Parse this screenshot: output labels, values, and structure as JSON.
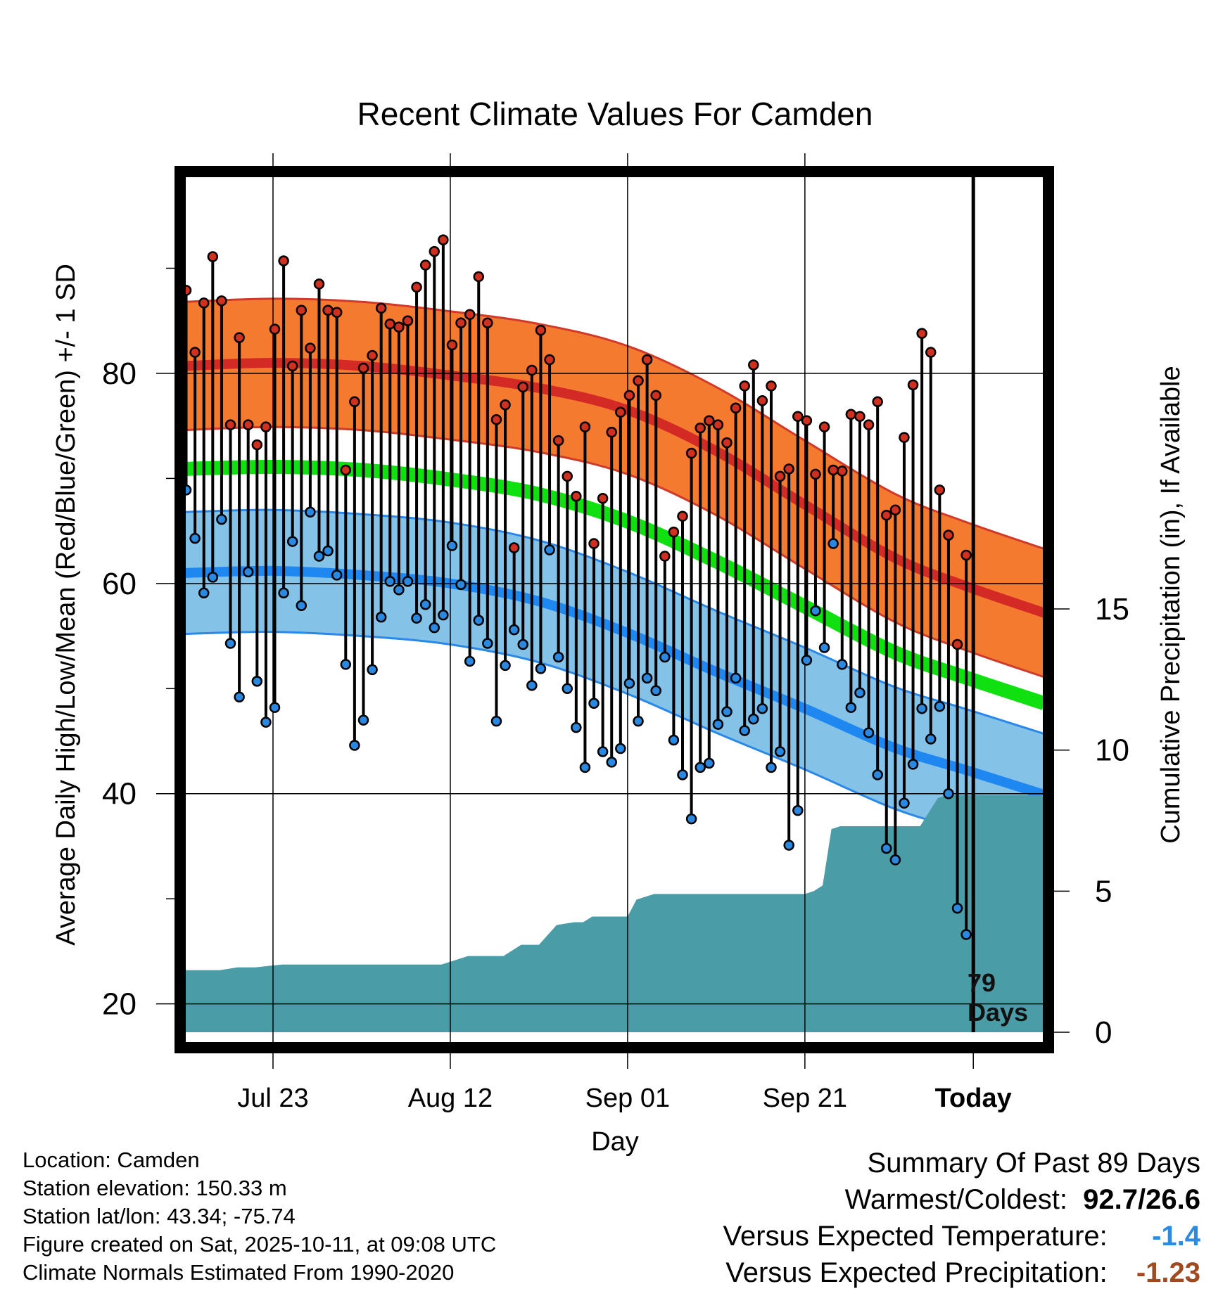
{
  "chart_data": {
    "type": "line",
    "title": "Recent Climate Values For Camden",
    "xlabel": "Day",
    "ylabel": "Average Daily High/Low/Mean (Red/Blue/Green) +/- 1 SD",
    "ylabel_right": "Cumulative Precipitation (in), If Available",
    "ylim": [
      17.3,
      99.2
    ],
    "y_ticks": [
      20,
      40,
      60,
      80
    ],
    "y2lim": [
      0,
      30.5
    ],
    "y2_ticks": [
      0,
      5,
      10,
      15
    ],
    "x_range": [
      -88,
      9
    ],
    "x_ticks": [
      {
        "day": -78,
        "label": "Jul 23"
      },
      {
        "day": -58,
        "label": "Aug 12"
      },
      {
        "day": -38,
        "label": "Sep 01"
      },
      {
        "day": -18,
        "label": "Sep 21"
      },
      {
        "day": 1,
        "label": "Today"
      }
    ],
    "today_day": 1,
    "today_annotation": "79 Days",
    "normal_high": {
      "day": [
        -88,
        -78,
        -68,
        -58,
        -48,
        -38,
        -28,
        -18,
        -8,
        0,
        9
      ],
      "mean": [
        80.7,
        81.0,
        80.7,
        79.8,
        78.6,
        76.5,
        72.6,
        67.5,
        62.5,
        59.8,
        57.2
      ],
      "sd": 6.1
    },
    "normal_low": {
      "day": [
        -88,
        -78,
        -68,
        -58,
        -48,
        -38,
        -28,
        -18,
        -8,
        0,
        9
      ],
      "mean": [
        61.0,
        61.2,
        60.8,
        60.0,
        58.3,
        55.3,
        51.6,
        48.1,
        44.4,
        42.3,
        39.9
      ],
      "sd": 5.8
    },
    "normal_mean": {
      "day": [
        -88,
        -78,
        -68,
        -58,
        -48,
        -38,
        -28,
        -18,
        -8,
        0,
        9
      ],
      "values": [
        70.9,
        71.1,
        70.8,
        69.9,
        68.5,
        65.9,
        62.1,
        57.8,
        53.5,
        51.1,
        48.6
      ]
    },
    "daily_high": [
      87.9,
      82.0,
      86.7,
      91.1,
      86.9,
      75.1,
      83.4,
      75.1,
      73.2,
      74.9,
      84.2,
      90.7,
      80.7,
      86.0,
      82.4,
      88.5,
      86.0,
      85.8,
      70.8,
      77.3,
      80.5,
      81.7,
      86.2,
      84.7,
      84.4,
      85.0,
      88.2,
      90.3,
      91.6,
      92.7,
      82.7,
      84.8,
      85.6,
      89.2,
      84.8,
      75.6,
      77.0,
      63.4,
      78.7,
      80.3,
      84.1,
      81.3,
      73.6,
      70.2,
      68.3,
      74.9,
      63.8,
      68.1,
      74.4,
      76.3,
      77.9,
      79.3,
      81.3,
      77.9,
      62.6,
      64.9,
      66.4,
      72.4,
      74.8,
      75.5,
      75.1,
      73.4,
      76.7,
      78.8,
      80.8,
      77.4,
      78.8,
      70.2,
      70.9,
      75.9,
      75.5,
      70.4,
      74.9,
      70.8,
      70.7,
      76.1,
      75.9,
      75.1,
      77.3,
      66.5,
      67.0,
      73.9,
      78.9,
      83.8,
      82.0,
      68.9,
      64.6,
      54.2,
      62.7
    ],
    "daily_low": [
      68.9,
      64.3,
      59.1,
      60.6,
      66.1,
      54.3,
      49.2,
      61.1,
      50.7,
      46.8,
      48.2,
      59.1,
      64.0,
      57.9,
      66.8,
      62.6,
      63.1,
      60.8,
      52.3,
      44.6,
      47.0,
      51.8,
      56.8,
      60.2,
      59.4,
      60.2,
      56.7,
      58.0,
      55.8,
      57.0,
      63.6,
      59.9,
      52.6,
      56.5,
      54.3,
      46.9,
      52.2,
      55.6,
      54.2,
      50.3,
      51.9,
      63.2,
      53.0,
      50.0,
      46.3,
      42.5,
      48.6,
      44.0,
      43.0,
      44.3,
      50.5,
      46.9,
      51.0,
      49.8,
      53.0,
      45.1,
      41.8,
      37.6,
      42.5,
      42.9,
      46.6,
      47.8,
      51.0,
      46.0,
      47.1,
      48.1,
      42.5,
      44.0,
      35.1,
      38.4,
      52.7,
      57.4,
      53.9,
      63.8,
      52.3,
      48.2,
      49.6,
      45.8,
      41.8,
      34.8,
      33.7,
      39.1,
      42.8,
      48.1,
      45.2,
      48.3,
      40.0,
      29.1,
      26.6
    ],
    "cum_precip": {
      "day": [
        -88,
        -84,
        -82,
        -80,
        -77,
        -76,
        -71,
        -59,
        -58,
        -56,
        -52,
        -50,
        -48,
        -46,
        -44,
        -43,
        -42,
        -41,
        -38,
        -37,
        -35,
        -33,
        -31,
        -18,
        -17,
        -16,
        -15,
        -14,
        -13,
        -12,
        -11,
        -10,
        -9,
        -8,
        -7,
        -6,
        -5,
        -3,
        -2,
        -1,
        0,
        9
      ],
      "values": [
        2.2,
        2.2,
        2.3,
        2.3,
        2.4,
        2.4,
        2.4,
        2.4,
        2.5,
        2.7,
        2.7,
        3.1,
        3.1,
        3.8,
        3.9,
        3.9,
        4.1,
        4.1,
        4.1,
        4.7,
        4.9,
        4.9,
        4.9,
        4.9,
        5.0,
        5.2,
        7.2,
        7.3,
        7.3,
        7.3,
        7.3,
        7.3,
        7.3,
        7.3,
        7.3,
        7.3,
        7.3,
        8.3,
        8.4,
        8.4,
        8.4,
        8.4
      ]
    }
  },
  "footer": {
    "location": "Location: Camden",
    "elevation": "Station elevation: 150.33 m",
    "latlon": "Station lat/lon: 43.34; -75.74",
    "created": "Figure created on Sat, 2025-10-11, at 09:08 UTC",
    "normals": "Climate Normals Estimated From 1990-2020"
  },
  "summary": {
    "title": "Summary Of Past 89 Days",
    "warm_cold_label": "Warmest/Coldest:",
    "warm_cold_value": "92.7/26.6",
    "temp_label": "Versus Expected Temperature:",
    "temp_value": "-1.4",
    "precip_label": "Versus Expected Precipitation:",
    "precip_value": "-1.23"
  },
  "colors": {
    "high_band": "#f47a30",
    "high_line": "#d42a26",
    "low_band": "#85c2e8",
    "low_line": "#1e88f0",
    "mean_line": "#10e010",
    "precip_fill": "#4a9ca6",
    "high_dot": "#d03020",
    "low_dot": "#2a88e0",
    "temp_value": "#2a8be0",
    "precip_value": "#a04a20"
  }
}
